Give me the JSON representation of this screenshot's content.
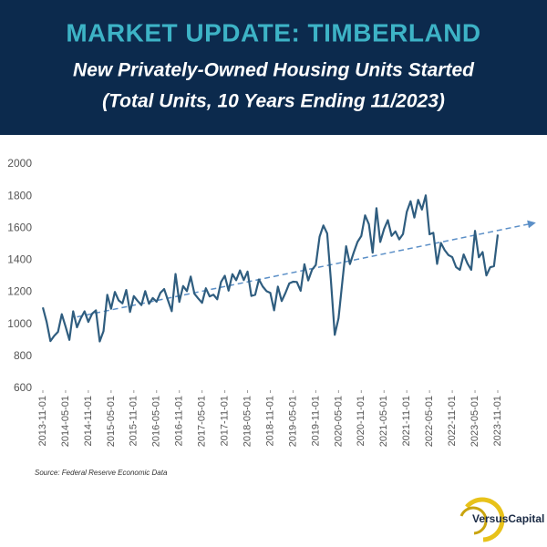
{
  "chart_data": {
    "type": "line",
    "title": "MARKET UPDATE: TIMBERLAND",
    "subtitle": [
      "New Privately-Owned Housing Units Started",
      "(Total Units, 10 Years Ending 11/2023)"
    ],
    "source": "Source: Federal Reserve Economic Data",
    "brand": "VersusCapital",
    "color": "#2f5d7f",
    "trendline": true,
    "trend_color": "#5b8fc7",
    "ylim": [
      600,
      2000
    ],
    "yticks": [
      600,
      800,
      1000,
      1200,
      1400,
      1600,
      1800,
      2000
    ],
    "grid": false,
    "categories": [
      "2013-11-01",
      null,
      null,
      null,
      null,
      null,
      "2014-05-01",
      null,
      null,
      null,
      null,
      null,
      "2014-11-01",
      null,
      null,
      null,
      null,
      null,
      "2015-05-01",
      null,
      null,
      null,
      null,
      null,
      "2015-11-01",
      null,
      null,
      null,
      null,
      null,
      "2016-05-01",
      null,
      null,
      null,
      null,
      null,
      "2016-11-01",
      null,
      null,
      null,
      null,
      null,
      "2017-05-01",
      null,
      null,
      null,
      null,
      null,
      "2017-11-01",
      null,
      null,
      null,
      null,
      null,
      "2018-05-01",
      null,
      null,
      null,
      null,
      null,
      "2018-11-01",
      null,
      null,
      null,
      null,
      null,
      "2019-05-01",
      null,
      null,
      null,
      null,
      null,
      "2019-11-01",
      null,
      null,
      null,
      null,
      null,
      "2020-05-01",
      null,
      null,
      null,
      null,
      null,
      "2020-11-01",
      null,
      null,
      null,
      null,
      null,
      "2021-05-01",
      null,
      null,
      null,
      null,
      null,
      "2021-11-01",
      null,
      null,
      null,
      null,
      null,
      "2022-05-01",
      null,
      null,
      null,
      null,
      null,
      "2022-11-01",
      null,
      null,
      null,
      null,
      null,
      "2023-05-01",
      null,
      null,
      null,
      null,
      null,
      "2023-11-01"
    ],
    "values": [
      1105,
      1015,
      895,
      928,
      953,
      1063,
      985,
      903,
      1081,
      981,
      1037,
      1081,
      1015,
      1066,
      1087,
      893,
      957,
      1184,
      1097,
      1202,
      1149,
      1131,
      1214,
      1077,
      1176,
      1146,
      1120,
      1207,
      1128,
      1164,
      1141,
      1196,
      1220,
      1150,
      1082,
      1314,
      1140,
      1239,
      1207,
      1298,
      1190,
      1161,
      1134,
      1225,
      1174,
      1185,
      1156,
      1264,
      1303,
      1210,
      1313,
      1275,
      1336,
      1276,
      1329,
      1177,
      1184,
      1280,
      1236,
      1207,
      1196,
      1087,
      1235,
      1145,
      1196,
      1255,
      1266,
      1264,
      1209,
      1375,
      1274,
      1340,
      1370,
      1547,
      1617,
      1567,
      1269,
      934,
      1038,
      1266,
      1487,
      1376,
      1448,
      1514,
      1551,
      1680,
      1625,
      1447,
      1725,
      1514,
      1594,
      1650,
      1552,
      1580,
      1530,
      1563,
      1702,
      1768,
      1666,
      1777,
      1716,
      1805,
      1562,
      1571,
      1377,
      1508,
      1463,
      1432,
      1419,
      1357,
      1340,
      1436,
      1380,
      1340,
      1583,
      1418,
      1451,
      1305,
      1356,
      1363,
      1560
    ]
  }
}
